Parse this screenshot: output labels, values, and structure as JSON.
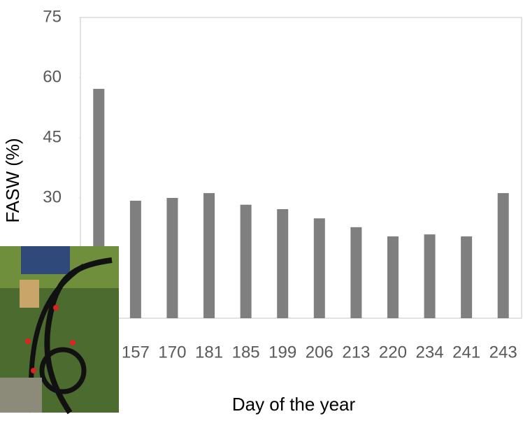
{
  "chart_data": {
    "type": "bar",
    "y_label": "FASW  (%)",
    "x_label": "Day of the year",
    "categories": [
      null,
      "157",
      "170",
      "181",
      "185",
      "199",
      "206",
      "213",
      "220",
      "234",
      "241",
      "243"
    ],
    "values": [
      57.2,
      29.3,
      30,
      31.2,
      28.3,
      27.2,
      24.9,
      22.7,
      20.4,
      20.9,
      20.4,
      31.2
    ],
    "color": "#7f7f7f",
    "ylim": [
      0,
      75
    ],
    "yticks": [
      30,
      45,
      60,
      75
    ]
  }
}
